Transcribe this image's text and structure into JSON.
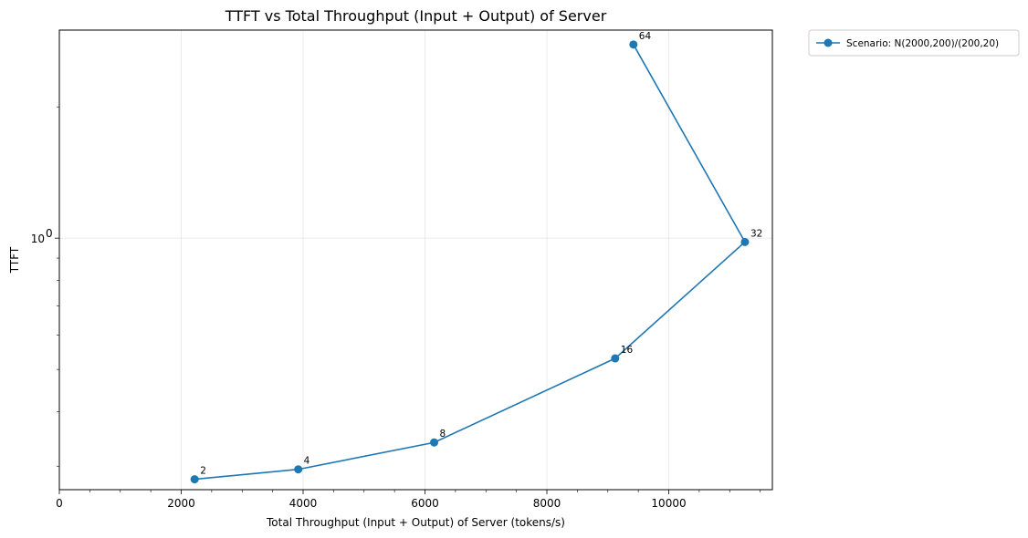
{
  "chart_data": {
    "type": "line",
    "title": "TTFT vs Total Throughput (Input + Output) of Server",
    "xlabel": "Total Throughput (Input + Output) of Server (tokens/s)",
    "ylabel": "TTFT",
    "xlim": [
      0,
      11700
    ],
    "ylim": [
      0.265,
      3.0
    ],
    "yscale": "log",
    "x_ticks": [
      0,
      2000,
      4000,
      6000,
      8000,
      10000
    ],
    "x_tick_labels": [
      "0",
      "2000",
      "4000",
      "6000",
      "8000",
      "10000"
    ],
    "y_major_ticks": [
      1
    ],
    "y_tick_labels": [
      "10",
      "0"
    ],
    "grid": true,
    "legend_position": "outside-top-right",
    "series": [
      {
        "name": "Scenario: N(2000,200)/(200,20)",
        "color": "#1f77b4",
        "marker": "circle",
        "x": [
          2220,
          3920,
          6150,
          9120,
          11250,
          9420
        ],
        "y": [
          0.28,
          0.295,
          0.34,
          0.53,
          0.98,
          2.78
        ],
        "point_labels": [
          "2",
          "4",
          "8",
          "16",
          "32",
          "64"
        ]
      }
    ]
  }
}
